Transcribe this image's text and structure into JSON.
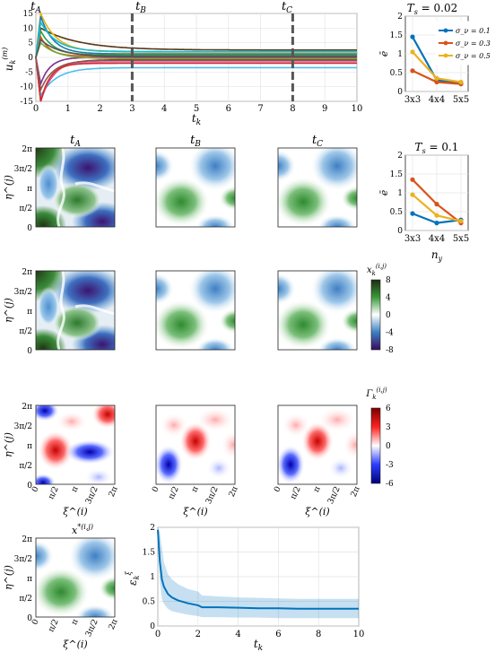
{
  "time_labels": {
    "a": "t_A",
    "b": "t_B",
    "c": "t_C"
  },
  "grid_axis_ticks": [
    "0",
    "π/2",
    "π",
    "3π/2",
    "2π"
  ],
  "row_ylabel": "η^(j)",
  "col_xlabel": "ξ^(i)",
  "colorbar_state": {
    "label": "x_k^(i,j)",
    "ticks": [
      "8",
      "4",
      "0",
      "-4",
      "-8"
    ]
  },
  "colorbar_gamma": {
    "label": "Γ_k^(i,j)",
    "ticks": [
      "6",
      "3",
      "0",
      "-3",
      "-6"
    ]
  },
  "target_label": "x*^(i,j)",
  "chart_data": [
    {
      "id": "control-inputs",
      "type": "line",
      "xlabel": "t_k",
      "ylabel": "u_k^(m)",
      "xlim": [
        0,
        10
      ],
      "ylim": [
        -15,
        15
      ],
      "xticks": [
        0,
        1,
        2,
        3,
        4,
        5,
        6,
        7,
        8,
        9,
        10
      ],
      "yticks": [
        -15,
        -10,
        -5,
        0,
        5,
        10,
        15
      ],
      "markers": [
        {
          "label": "t_A",
          "x": 0
        },
        {
          "label": "t_B",
          "x": 3
        },
        {
          "label": "t_C",
          "x": 8
        }
      ],
      "grid": true,
      "series": [
        {
          "color": "#5a3515",
          "start": 10,
          "final": 2.5,
          "tau": 1.2
        },
        {
          "color": "#e3b20a",
          "start": 15,
          "final": 1.8,
          "tau": 0.5
        },
        {
          "color": "#1f77b4",
          "start": 14,
          "final": 1.2,
          "tau": 0.4
        },
        {
          "color": "#2a9d4a",
          "start": 9,
          "final": 0.8,
          "tau": 0.4
        },
        {
          "color": "#d95319",
          "start": 7,
          "final": 0.4,
          "tau": 0.3
        },
        {
          "color": "#7e2f8e",
          "start": -9,
          "final": 0,
          "tau": 0.3
        },
        {
          "color": "#4dbeee",
          "start": -13,
          "final": -3.5,
          "tau": 0.5
        },
        {
          "color": "#a2142f",
          "start": -15,
          "final": -0.8,
          "tau": 0.4
        },
        {
          "color": "#77ac30",
          "start": 5,
          "final": -0.4,
          "tau": 0.5
        },
        {
          "color": "#e377c2",
          "start": -15,
          "final": -1.5,
          "tau": 0.35
        },
        {
          "color": "#d62728",
          "start": -15,
          "final": -2.0,
          "tau": 0.3
        },
        {
          "color": "#17becf",
          "start": 12,
          "final": 2.0,
          "tau": 0.5
        },
        {
          "color": "#8c564b",
          "start": -11,
          "final": -1.0,
          "tau": 0.4
        },
        {
          "color": "#555555",
          "start": 6,
          "final": 0.3,
          "tau": 0.6
        }
      ]
    },
    {
      "id": "error-ts002",
      "type": "line",
      "title": "T_s = 0.02",
      "ylabel": "ē",
      "categories": [
        "3x3",
        "4x4",
        "5x5"
      ],
      "ylim": [
        0,
        2
      ],
      "yticks": [
        0,
        0.5,
        1,
        1.5,
        2
      ],
      "legend_position": "top-right",
      "series": [
        {
          "name": "σ_ν = 0.1",
          "color": "#0072bd",
          "values": [
            1.45,
            0.3,
            0.22
          ]
        },
        {
          "name": "σ_ν = 0.3",
          "color": "#d95319",
          "values": [
            0.55,
            0.25,
            0.2
          ]
        },
        {
          "name": "σ_ν = 0.5",
          "color": "#edb120",
          "values": [
            1.05,
            0.35,
            0.25
          ]
        }
      ]
    },
    {
      "id": "error-ts01",
      "type": "line",
      "title": "T_s = 0.1",
      "ylabel": "ē",
      "xlabel": "n_y",
      "categories": [
        "3x3",
        "4x4",
        "5x5"
      ],
      "ylim": [
        0,
        2
      ],
      "yticks": [
        0,
        0.5,
        1,
        1.5,
        2
      ],
      "series": [
        {
          "color": "#0072bd",
          "values": [
            0.45,
            0.2,
            0.28
          ]
        },
        {
          "color": "#d95319",
          "values": [
            1.35,
            0.7,
            0.2
          ]
        },
        {
          "color": "#edb120",
          "values": [
            0.95,
            0.4,
            0.25
          ]
        }
      ]
    },
    {
      "id": "error-over-time",
      "type": "area",
      "xlabel": "t_k",
      "ylabel": "ε_k^ξ",
      "xlim": [
        0,
        10
      ],
      "ylim": [
        0,
        2
      ],
      "xticks": [
        0,
        2,
        4,
        6,
        8,
        10
      ],
      "yticks": [
        0,
        0.5,
        1,
        1.5,
        2
      ],
      "grid": true,
      "x": [
        0,
        0.1,
        0.2,
        0.3,
        0.5,
        0.7,
        1.0,
        1.5,
        2.0,
        2.2,
        3,
        4,
        5,
        6,
        7,
        8,
        9,
        10
      ],
      "mean": [
        1.95,
        1.3,
        0.95,
        0.8,
        0.65,
        0.58,
        0.52,
        0.46,
        0.42,
        0.38,
        0.38,
        0.37,
        0.36,
        0.36,
        0.35,
        0.35,
        0.35,
        0.35
      ],
      "upper": [
        2.0,
        1.9,
        1.6,
        1.3,
        1.05,
        0.95,
        0.85,
        0.75,
        0.7,
        0.62,
        0.6,
        0.58,
        0.57,
        0.56,
        0.55,
        0.55,
        0.55,
        0.55
      ],
      "lower": [
        1.9,
        0.9,
        0.55,
        0.45,
        0.35,
        0.3,
        0.27,
        0.23,
        0.2,
        0.18,
        0.18,
        0.17,
        0.17,
        0.16,
        0.16,
        0.16,
        0.16,
        0.16
      ]
    }
  ]
}
